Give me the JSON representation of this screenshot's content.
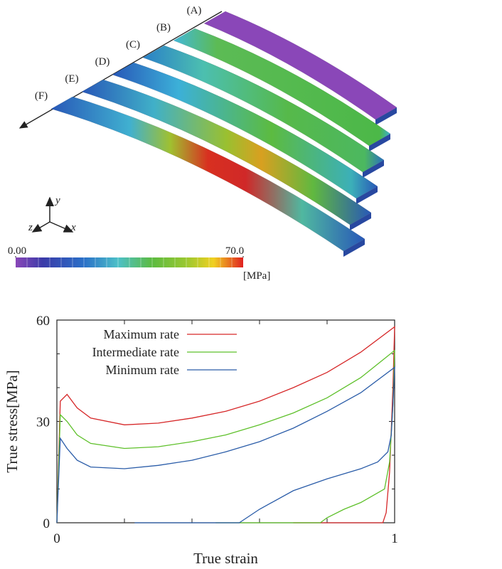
{
  "figure": {
    "beam_labels": [
      "(A)",
      "(B)",
      "(C)",
      "(D)",
      "(E)",
      "(F)"
    ],
    "axes": [
      "y",
      "x",
      "z"
    ],
    "colorbar": {
      "ticks": [
        {
          "value": 0,
          "label": "0.00"
        },
        {
          "value": 70,
          "label": "70.0"
        }
      ],
      "unit": "[MPa]"
    }
  },
  "chart_data": {
    "type": "line",
    "xlabel": "True strain",
    "ylabel": "True stress[MPa]",
    "xlim": [
      0,
      1
    ],
    "ylim": [
      0,
      60
    ],
    "xticks": [
      0,
      1
    ],
    "yticks": [
      0,
      30,
      60
    ],
    "legend": "upper left",
    "series": [
      {
        "name": "Maximum rate",
        "color": "#d62728",
        "x": [
          0,
          0.01,
          0.03,
          0.06,
          0.1,
          0.2,
          0.3,
          0.4,
          0.5,
          0.6,
          0.7,
          0.8,
          0.9,
          1.0,
          0.995,
          0.985,
          0.975,
          0.965,
          0.7
        ],
        "values": [
          0,
          36,
          38,
          34,
          31,
          29,
          29.5,
          31,
          33,
          36,
          40,
          44.5,
          50.5,
          58,
          40,
          15,
          3,
          0,
          0
        ]
      },
      {
        "name": "Intermediate rate",
        "color": "#5ec02a",
        "x": [
          0,
          0.01,
          0.03,
          0.06,
          0.1,
          0.2,
          0.3,
          0.4,
          0.5,
          0.6,
          0.7,
          0.8,
          0.9,
          1.0,
          0.995,
          0.985,
          0.97,
          0.9,
          0.85,
          0.8,
          0.78,
          0.47
        ],
        "values": [
          0,
          32,
          30,
          26,
          23.5,
          22,
          22.5,
          24,
          26,
          29,
          32.5,
          37,
          43,
          51,
          35,
          18,
          10,
          6,
          4,
          1.5,
          0,
          0
        ]
      },
      {
        "name": "Minimum rate",
        "color": "#2a5ca8",
        "x": [
          0,
          0.01,
          0.03,
          0.06,
          0.1,
          0.2,
          0.3,
          0.4,
          0.5,
          0.6,
          0.7,
          0.8,
          0.9,
          1.0,
          0.995,
          0.99,
          0.98,
          0.95,
          0.9,
          0.8,
          0.7,
          0.6,
          0.54,
          0.23
        ],
        "values": [
          0,
          25,
          22,
          18.5,
          16.5,
          16,
          17,
          18.5,
          21,
          24,
          28,
          33,
          38.5,
          46,
          35,
          26,
          21,
          18,
          16,
          13,
          9.5,
          4,
          0,
          0
        ]
      }
    ]
  }
}
